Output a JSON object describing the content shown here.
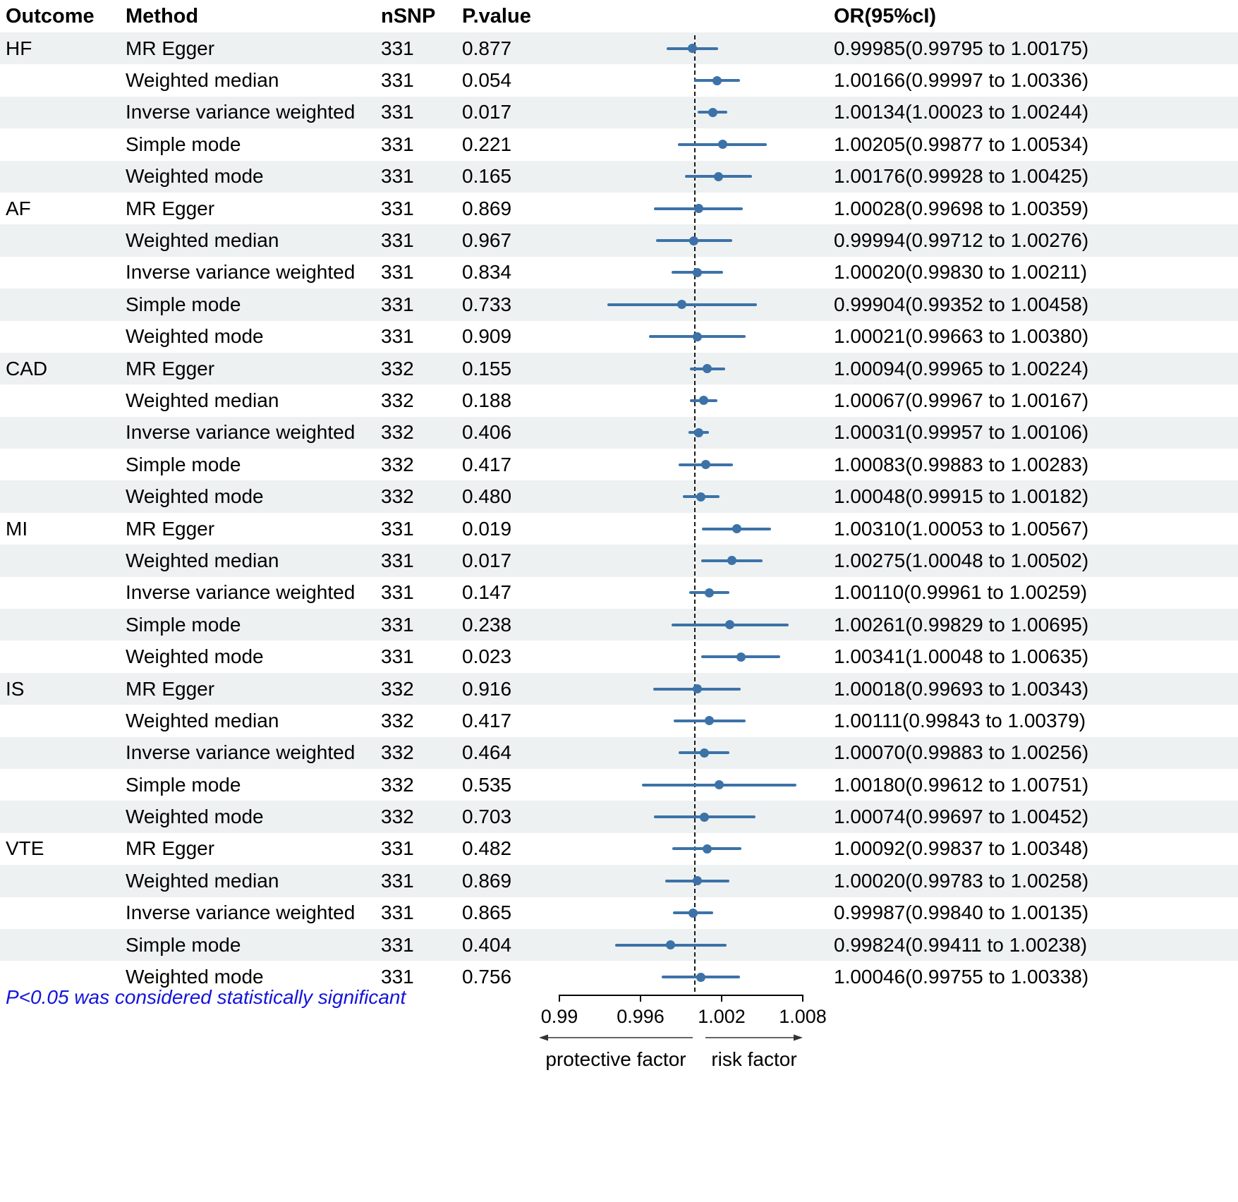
{
  "header": {
    "outcome": "Outcome",
    "method": "Method",
    "nsnp": "nSNP",
    "pvalue": "P.value",
    "or_ci": "OR(95%cI)"
  },
  "note": "P<0.05 was considered statistically significant",
  "axis_labels": {
    "protective": "protective factor",
    "risk": "risk factor"
  },
  "colors": {
    "point": "#3C72A8",
    "ci_line": "#3C72A8",
    "row_shade": "#EDF1F1",
    "note_text": "#1414DC",
    "null_line": "#1A1A1A"
  },
  "chart_data": {
    "type": "forest",
    "title": "",
    "xlabel": "",
    "legend": "none",
    "axis": {
      "min": 0.99,
      "max": 1.008,
      "ticks": [
        0.99,
        0.996,
        1.002,
        1.008
      ],
      "null_line": 1.0
    },
    "tick_labels": [
      "0.99",
      "0.996",
      "1.002",
      "1.008"
    ],
    "rows": [
      {
        "outcome": "HF",
        "method": "MR Egger",
        "nsnp": "331",
        "pvalue": "0.877",
        "or": 0.99985,
        "ci_low": 0.99795,
        "ci_high": 1.00175,
        "or_text": "0.99985(0.99795 to 1.00175)"
      },
      {
        "outcome": "",
        "method": "Weighted median",
        "nsnp": "331",
        "pvalue": "0.054",
        "or": 1.00166,
        "ci_low": 0.99997,
        "ci_high": 1.00336,
        "or_text": "1.00166(0.99997 to 1.00336)"
      },
      {
        "outcome": "",
        "method": "Inverse variance weighted",
        "nsnp": "331",
        "pvalue": "0.017",
        "or": 1.00134,
        "ci_low": 1.00023,
        "ci_high": 1.00244,
        "or_text": "1.00134(1.00023 to 1.00244)"
      },
      {
        "outcome": "",
        "method": "Simple mode",
        "nsnp": "331",
        "pvalue": "0.221",
        "or": 1.00205,
        "ci_low": 0.99877,
        "ci_high": 1.00534,
        "or_text": "1.00205(0.99877 to 1.00534)"
      },
      {
        "outcome": "",
        "method": "Weighted mode",
        "nsnp": "331",
        "pvalue": "0.165",
        "or": 1.00176,
        "ci_low": 0.99928,
        "ci_high": 1.00425,
        "or_text": "1.00176(0.99928 to 1.00425)"
      },
      {
        "outcome": "AF",
        "method": "MR Egger",
        "nsnp": "331",
        "pvalue": "0.869",
        "or": 1.00028,
        "ci_low": 0.99698,
        "ci_high": 1.00359,
        "or_text": "1.00028(0.99698 to 1.00359)"
      },
      {
        "outcome": "",
        "method": "Weighted median",
        "nsnp": "331",
        "pvalue": "0.967",
        "or": 0.99994,
        "ci_low": 0.99712,
        "ci_high": 1.00276,
        "or_text": "0.99994(0.99712 to 1.00276)"
      },
      {
        "outcome": "",
        "method": "Inverse variance weighted",
        "nsnp": "331",
        "pvalue": "0.834",
        "or": 1.0002,
        "ci_low": 0.9983,
        "ci_high": 1.00211,
        "or_text": "1.00020(0.99830 to 1.00211)"
      },
      {
        "outcome": "",
        "method": "Simple mode",
        "nsnp": "331",
        "pvalue": "0.733",
        "or": 0.99904,
        "ci_low": 0.99352,
        "ci_high": 1.00458,
        "or_text": "0.99904(0.99352 to 1.00458)"
      },
      {
        "outcome": "",
        "method": "Weighted mode",
        "nsnp": "331",
        "pvalue": "0.909",
        "or": 1.00021,
        "ci_low": 0.99663,
        "ci_high": 1.0038,
        "or_text": "1.00021(0.99663 to 1.00380)"
      },
      {
        "outcome": "CAD",
        "method": "MR Egger",
        "nsnp": "332",
        "pvalue": "0.155",
        "or": 1.00094,
        "ci_low": 0.99965,
        "ci_high": 1.00224,
        "or_text": "1.00094(0.99965 to 1.00224)"
      },
      {
        "outcome": "",
        "method": "Weighted median",
        "nsnp": "332",
        "pvalue": "0.188",
        "or": 1.00067,
        "ci_low": 0.99967,
        "ci_high": 1.00167,
        "or_text": "1.00067(0.99967 to 1.00167)"
      },
      {
        "outcome": "",
        "method": "Inverse variance weighted",
        "nsnp": "332",
        "pvalue": "0.406",
        "or": 1.00031,
        "ci_low": 0.99957,
        "ci_high": 1.00106,
        "or_text": "1.00031(0.99957 to 1.00106)"
      },
      {
        "outcome": "",
        "method": "Simple mode",
        "nsnp": "332",
        "pvalue": "0.417",
        "or": 1.00083,
        "ci_low": 0.99883,
        "ci_high": 1.00283,
        "or_text": "1.00083(0.99883 to 1.00283)"
      },
      {
        "outcome": "",
        "method": "Weighted mode",
        "nsnp": "332",
        "pvalue": "0.480",
        "or": 1.00048,
        "ci_low": 0.99915,
        "ci_high": 1.00182,
        "or_text": "1.00048(0.99915 to 1.00182)"
      },
      {
        "outcome": "MI",
        "method": "MR Egger",
        "nsnp": "331",
        "pvalue": "0.019",
        "or": 1.0031,
        "ci_low": 1.00053,
        "ci_high": 1.00567,
        "or_text": "1.00310(1.00053 to 1.00567)"
      },
      {
        "outcome": "",
        "method": "Weighted median",
        "nsnp": "331",
        "pvalue": "0.017",
        "or": 1.00275,
        "ci_low": 1.00048,
        "ci_high": 1.00502,
        "or_text": "1.00275(1.00048 to 1.00502)"
      },
      {
        "outcome": "",
        "method": "Inverse variance weighted",
        "nsnp": "331",
        "pvalue": "0.147",
        "or": 1.0011,
        "ci_low": 0.99961,
        "ci_high": 1.00259,
        "or_text": "1.00110(0.99961 to 1.00259)"
      },
      {
        "outcome": "",
        "method": "Simple mode",
        "nsnp": "331",
        "pvalue": "0.238",
        "or": 1.00261,
        "ci_low": 0.99829,
        "ci_high": 1.00695,
        "or_text": "1.00261(0.99829 to 1.00695)"
      },
      {
        "outcome": "",
        "method": "Weighted mode",
        "nsnp": "331",
        "pvalue": "0.023",
        "or": 1.00341,
        "ci_low": 1.00048,
        "ci_high": 1.00635,
        "or_text": "1.00341(1.00048 to 1.00635)"
      },
      {
        "outcome": "IS",
        "method": "MR Egger",
        "nsnp": "332",
        "pvalue": "0.916",
        "or": 1.00018,
        "ci_low": 0.99693,
        "ci_high": 1.00343,
        "or_text": "1.00018(0.99693 to 1.00343)"
      },
      {
        "outcome": "",
        "method": "Weighted median",
        "nsnp": "332",
        "pvalue": "0.417",
        "or": 1.00111,
        "ci_low": 0.99843,
        "ci_high": 1.00379,
        "or_text": "1.00111(0.99843 to 1.00379)"
      },
      {
        "outcome": "",
        "method": "Inverse variance weighted",
        "nsnp": "332",
        "pvalue": "0.464",
        "or": 1.0007,
        "ci_low": 0.99883,
        "ci_high": 1.00256,
        "or_text": "1.00070(0.99883 to 1.00256)"
      },
      {
        "outcome": "",
        "method": "Simple mode",
        "nsnp": "332",
        "pvalue": "0.535",
        "or": 1.0018,
        "ci_low": 0.99612,
        "ci_high": 1.00751,
        "or_text": "1.00180(0.99612 to 1.00751)"
      },
      {
        "outcome": "",
        "method": "Weighted mode",
        "nsnp": "332",
        "pvalue": "0.703",
        "or": 1.00074,
        "ci_low": 0.99697,
        "ci_high": 1.00452,
        "or_text": "1.00074(0.99697 to 1.00452)"
      },
      {
        "outcome": "VTE",
        "method": "MR Egger",
        "nsnp": "331",
        "pvalue": "0.482",
        "or": 1.00092,
        "ci_low": 0.99837,
        "ci_high": 1.00348,
        "or_text": "1.00092(0.99837 to 1.00348)"
      },
      {
        "outcome": "",
        "method": "Weighted median",
        "nsnp": "331",
        "pvalue": "0.869",
        "or": 1.0002,
        "ci_low": 0.99783,
        "ci_high": 1.00258,
        "or_text": "1.00020(0.99783 to 1.00258)"
      },
      {
        "outcome": "",
        "method": "Inverse variance weighted",
        "nsnp": "331",
        "pvalue": "0.865",
        "or": 0.99987,
        "ci_low": 0.9984,
        "ci_high": 1.00135,
        "or_text": "0.99987(0.99840 to 1.00135)"
      },
      {
        "outcome": "",
        "method": "Simple mode",
        "nsnp": "331",
        "pvalue": "0.404",
        "or": 0.99824,
        "ci_low": 0.99411,
        "ci_high": 1.00238,
        "or_text": "0.99824(0.99411 to 1.00238)"
      },
      {
        "outcome": "",
        "method": "Weighted mode",
        "nsnp": "331",
        "pvalue": "0.756",
        "or": 1.00046,
        "ci_low": 0.99755,
        "ci_high": 1.00338,
        "or_text": "1.00046(0.99755 to 1.00338)"
      }
    ]
  }
}
